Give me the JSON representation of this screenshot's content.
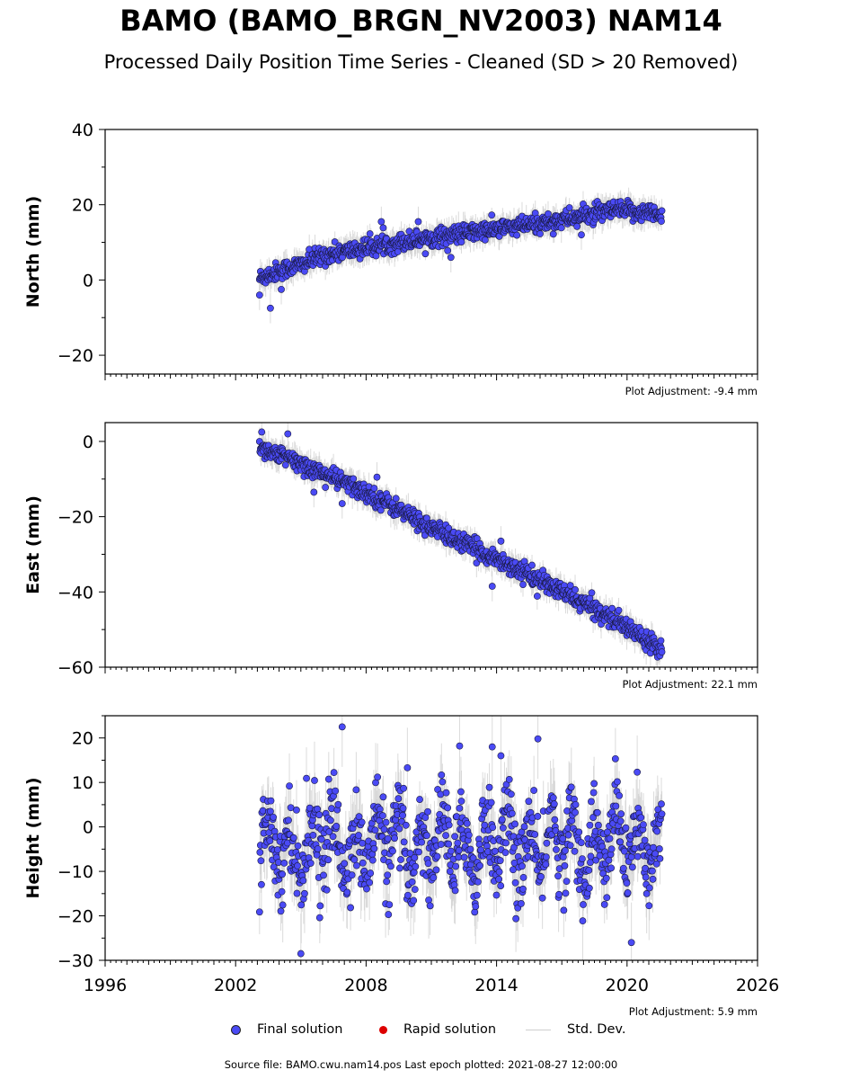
{
  "title": "BAMO (BAMO_BRGN_NV2003) NAM14",
  "subtitle": "Processed Daily Position Time Series - Cleaned (SD > 20 Removed)",
  "legend": {
    "final_label": "Final solution",
    "rapid_label": "Rapid solution",
    "stddev_label": "Std. Dev.",
    "final_color": "#4a4af5",
    "rapid_color": "#dd0000",
    "stddev_color": "#cfcfcf"
  },
  "source_line": "Source file: BAMO.cwu.nam14.pos  Last epoch plotted: 2021-08-27 12:00:00",
  "chart_data": [
    {
      "type": "scatter",
      "ylabel": "North (mm)",
      "xlim": [
        1996,
        2026
      ],
      "ylim": [
        -25,
        40
      ],
      "yticks": [
        -20,
        0,
        20,
        40
      ],
      "ytick_labels": [
        "−20",
        "0",
        "20",
        "40"
      ],
      "adjustment": "Plot Adjustment: -9.4 mm",
      "trend": {
        "x": [
          2003.1,
          2004.0,
          2005.0,
          2006.0,
          2008.0,
          2010.0,
          2012.0,
          2014.0,
          2016.0,
          2018.0,
          2019.5,
          2021.6
        ],
        "y": [
          0.5,
          2.5,
          4.0,
          6.5,
          8.5,
          10.5,
          12.0,
          13.5,
          15.0,
          17.0,
          18.5,
          17.5
        ]
      },
      "noise": 1.2,
      "sd_range": [
        1.5,
        4
      ],
      "outliers": [
        {
          "x": 2003.6,
          "y": -7.5
        },
        {
          "x": 2004.1,
          "y": -2.5
        },
        {
          "x": 2003.1,
          "y": -4
        },
        {
          "x": 2008.7,
          "y": 15.5
        },
        {
          "x": 2010.4,
          "y": 15.5
        },
        {
          "x": 2011.9,
          "y": 6
        },
        {
          "x": 2017.9,
          "y": 12
        }
      ]
    },
    {
      "type": "scatter",
      "ylabel": "East (mm)",
      "xlim": [
        1996,
        2026
      ],
      "ylim": [
        -60,
        5
      ],
      "yticks": [
        -60,
        -40,
        -20,
        0
      ],
      "ytick_labels": [
        "−60",
        "−40",
        "−20",
        "0"
      ],
      "adjustment": "Plot Adjustment: 22.1 mm",
      "trend": {
        "x": [
          2003.1,
          2005.0,
          2007.0,
          2009.0,
          2011.0,
          2013.0,
          2015.0,
          2017.0,
          2019.0,
          2021.6
        ],
        "y": [
          -1.5,
          -6,
          -11,
          -16.5,
          -23,
          -28.5,
          -34,
          -40,
          -46,
          -55
        ]
      },
      "noise": 1.2,
      "sd_range": [
        1.5,
        4
      ],
      "outliers": [
        {
          "x": 2003.2,
          "y": 2.5
        },
        {
          "x": 2004.4,
          "y": 2
        },
        {
          "x": 2005.6,
          "y": -13.5
        },
        {
          "x": 2006.9,
          "y": -16.5
        },
        {
          "x": 2008.5,
          "y": -9.5
        },
        {
          "x": 2013.8,
          "y": -38.5
        },
        {
          "x": 2014.2,
          "y": -26.5
        }
      ]
    },
    {
      "type": "scatter",
      "ylabel": "Height (mm)",
      "xlim": [
        1996,
        2026
      ],
      "ylim": [
        -30,
        25
      ],
      "yticks": [
        -30,
        -20,
        -10,
        0,
        10,
        20
      ],
      "ytick_labels": [
        "−30",
        "−20",
        "−10",
        "0",
        "10",
        "20"
      ],
      "xticks": [
        1996,
        2002,
        2008,
        2014,
        2020,
        2026
      ],
      "xtick_labels": [
        "1996",
        "2002",
        "2008",
        "2014",
        "2020",
        "2026"
      ],
      "adjustment": "Plot Adjustment: 5.9 mm",
      "trend": {
        "x": [
          2003.1,
          2021.6
        ],
        "y": [
          -4,
          -4
        ]
      },
      "seasonal_amp": 6,
      "noise": 4.5,
      "sd_range": [
        3,
        9
      ],
      "outliers": [
        {
          "x": 2006.9,
          "y": 22.5
        },
        {
          "x": 2005.0,
          "y": -28.5
        },
        {
          "x": 2015.9,
          "y": 19.8
        },
        {
          "x": 2020.2,
          "y": -26
        },
        {
          "x": 2012.3,
          "y": 18.2
        },
        {
          "x": 2013.8,
          "y": 18
        },
        {
          "x": 2009.9,
          "y": 13.3
        },
        {
          "x": 2014.2,
          "y": 16
        }
      ]
    }
  ]
}
